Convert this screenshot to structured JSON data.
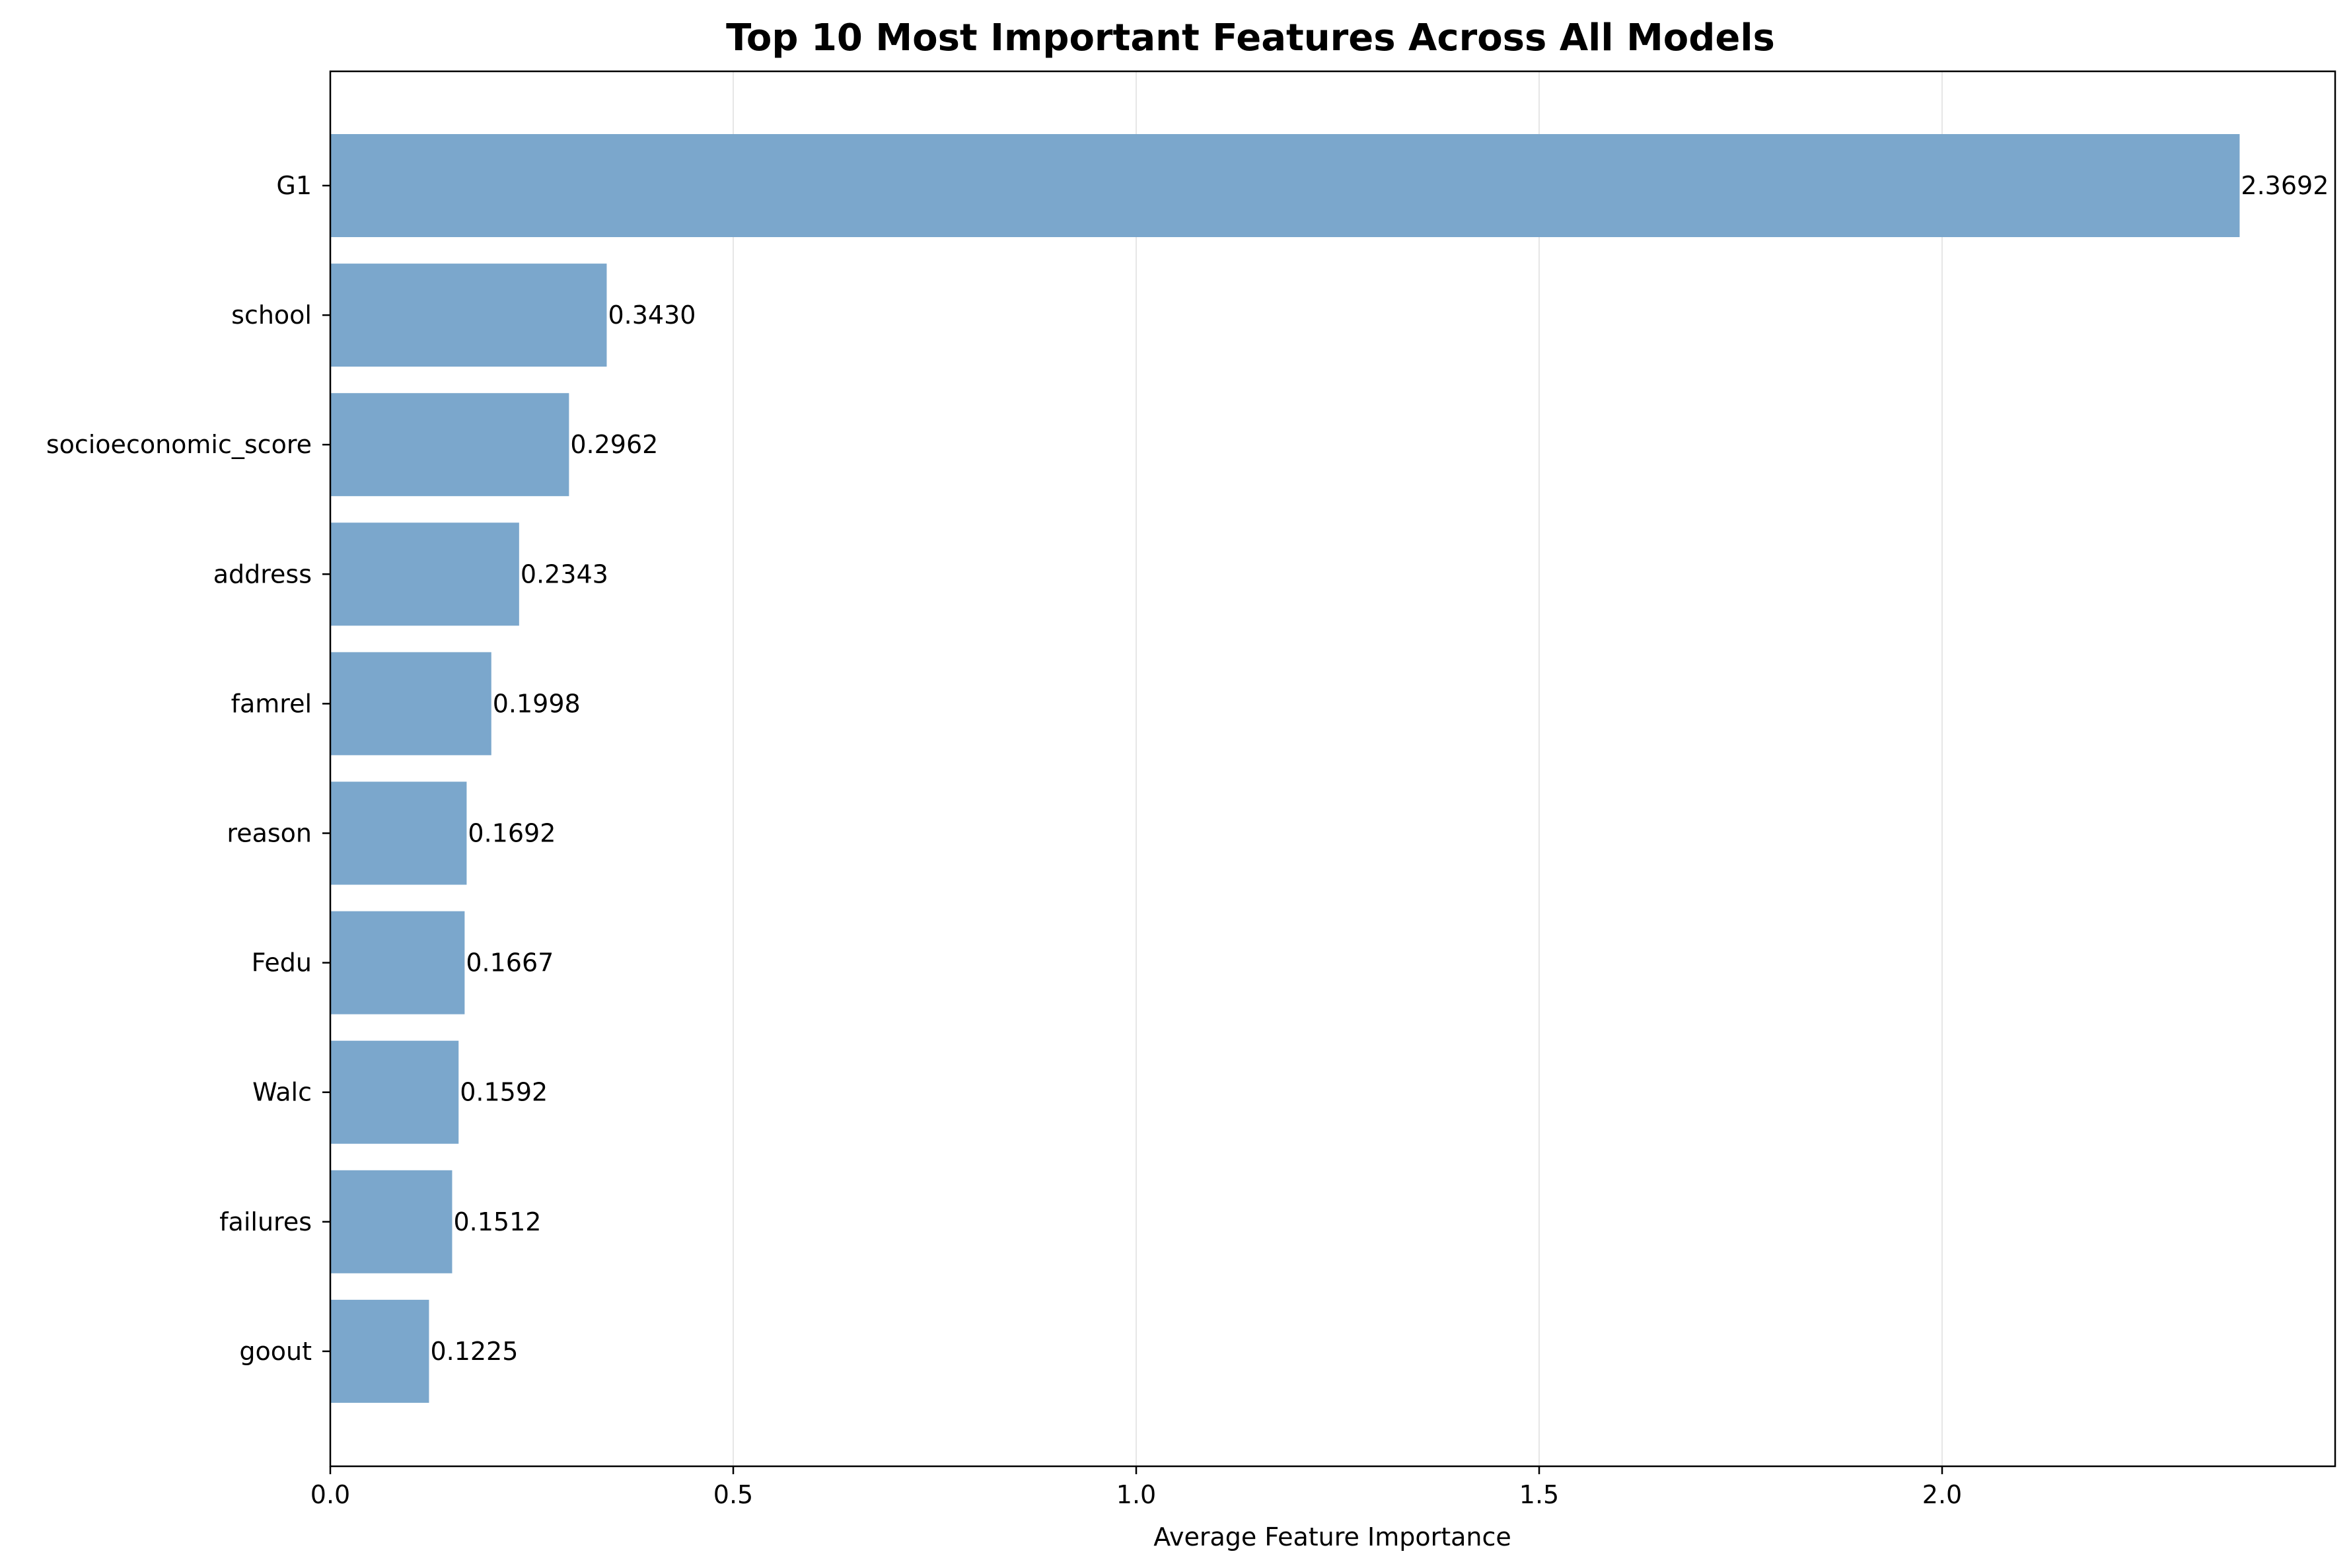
{
  "chart_data": {
    "type": "bar",
    "orientation": "horizontal",
    "title": "Top 10 Most Important Features Across All Models",
    "xlabel": "Average Feature Importance",
    "ylabel": "",
    "categories": [
      "G1",
      "school",
      "socioeconomic_score",
      "address",
      "famrel",
      "reason",
      "Fedu",
      "Walc",
      "failures",
      "goout"
    ],
    "values": [
      2.3692,
      0.343,
      0.2962,
      0.2343,
      0.1998,
      0.1692,
      0.1667,
      0.1592,
      0.1512,
      0.1225
    ],
    "value_labels": [
      "2.3692",
      "0.3430",
      "0.2962",
      "0.2343",
      "0.1998",
      "0.1692",
      "0.1667",
      "0.1592",
      "0.1512",
      "0.1225"
    ],
    "xlim": [
      0,
      2.4877
    ],
    "xticks": [
      0.0,
      0.5,
      1.0,
      1.5,
      2.0
    ],
    "xtick_labels": [
      "0.0",
      "0.5",
      "1.0",
      "1.5",
      "2.0"
    ],
    "grid": "x-axis vertical lines",
    "bar_color": "#7ba7cc",
    "grid_color": "#e6e6e6"
  }
}
